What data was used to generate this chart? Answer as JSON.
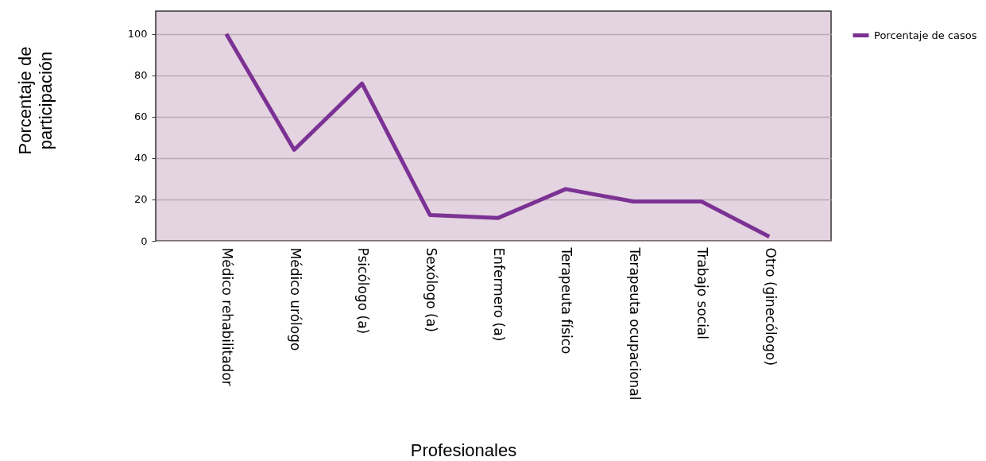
{
  "chart_data": {
    "type": "line",
    "xlabel": "Profesionales",
    "ylabel": "Porcentaje de participación",
    "categories": [
      "Médico rehabilitador",
      "Médico urólogo",
      "Psicólogo (a)",
      "Sexólogo (a)",
      "Enfermero (a)",
      "Terapeuta físico",
      "Terapeuta ocupacional",
      "Trabajo social",
      "Otro (ginecólogo)"
    ],
    "series": [
      {
        "name": "Porcentaje de casos",
        "color": "#7b3294",
        "values": [
          100,
          44,
          76,
          12.5,
          11,
          25,
          19,
          19,
          2
        ]
      }
    ],
    "ylim": [
      0,
      111
    ],
    "yticks": [
      0,
      20,
      40,
      60,
      80,
      100
    ],
    "grid": "y",
    "legend": "top right",
    "marker": "none",
    "line_style": "solid"
  }
}
